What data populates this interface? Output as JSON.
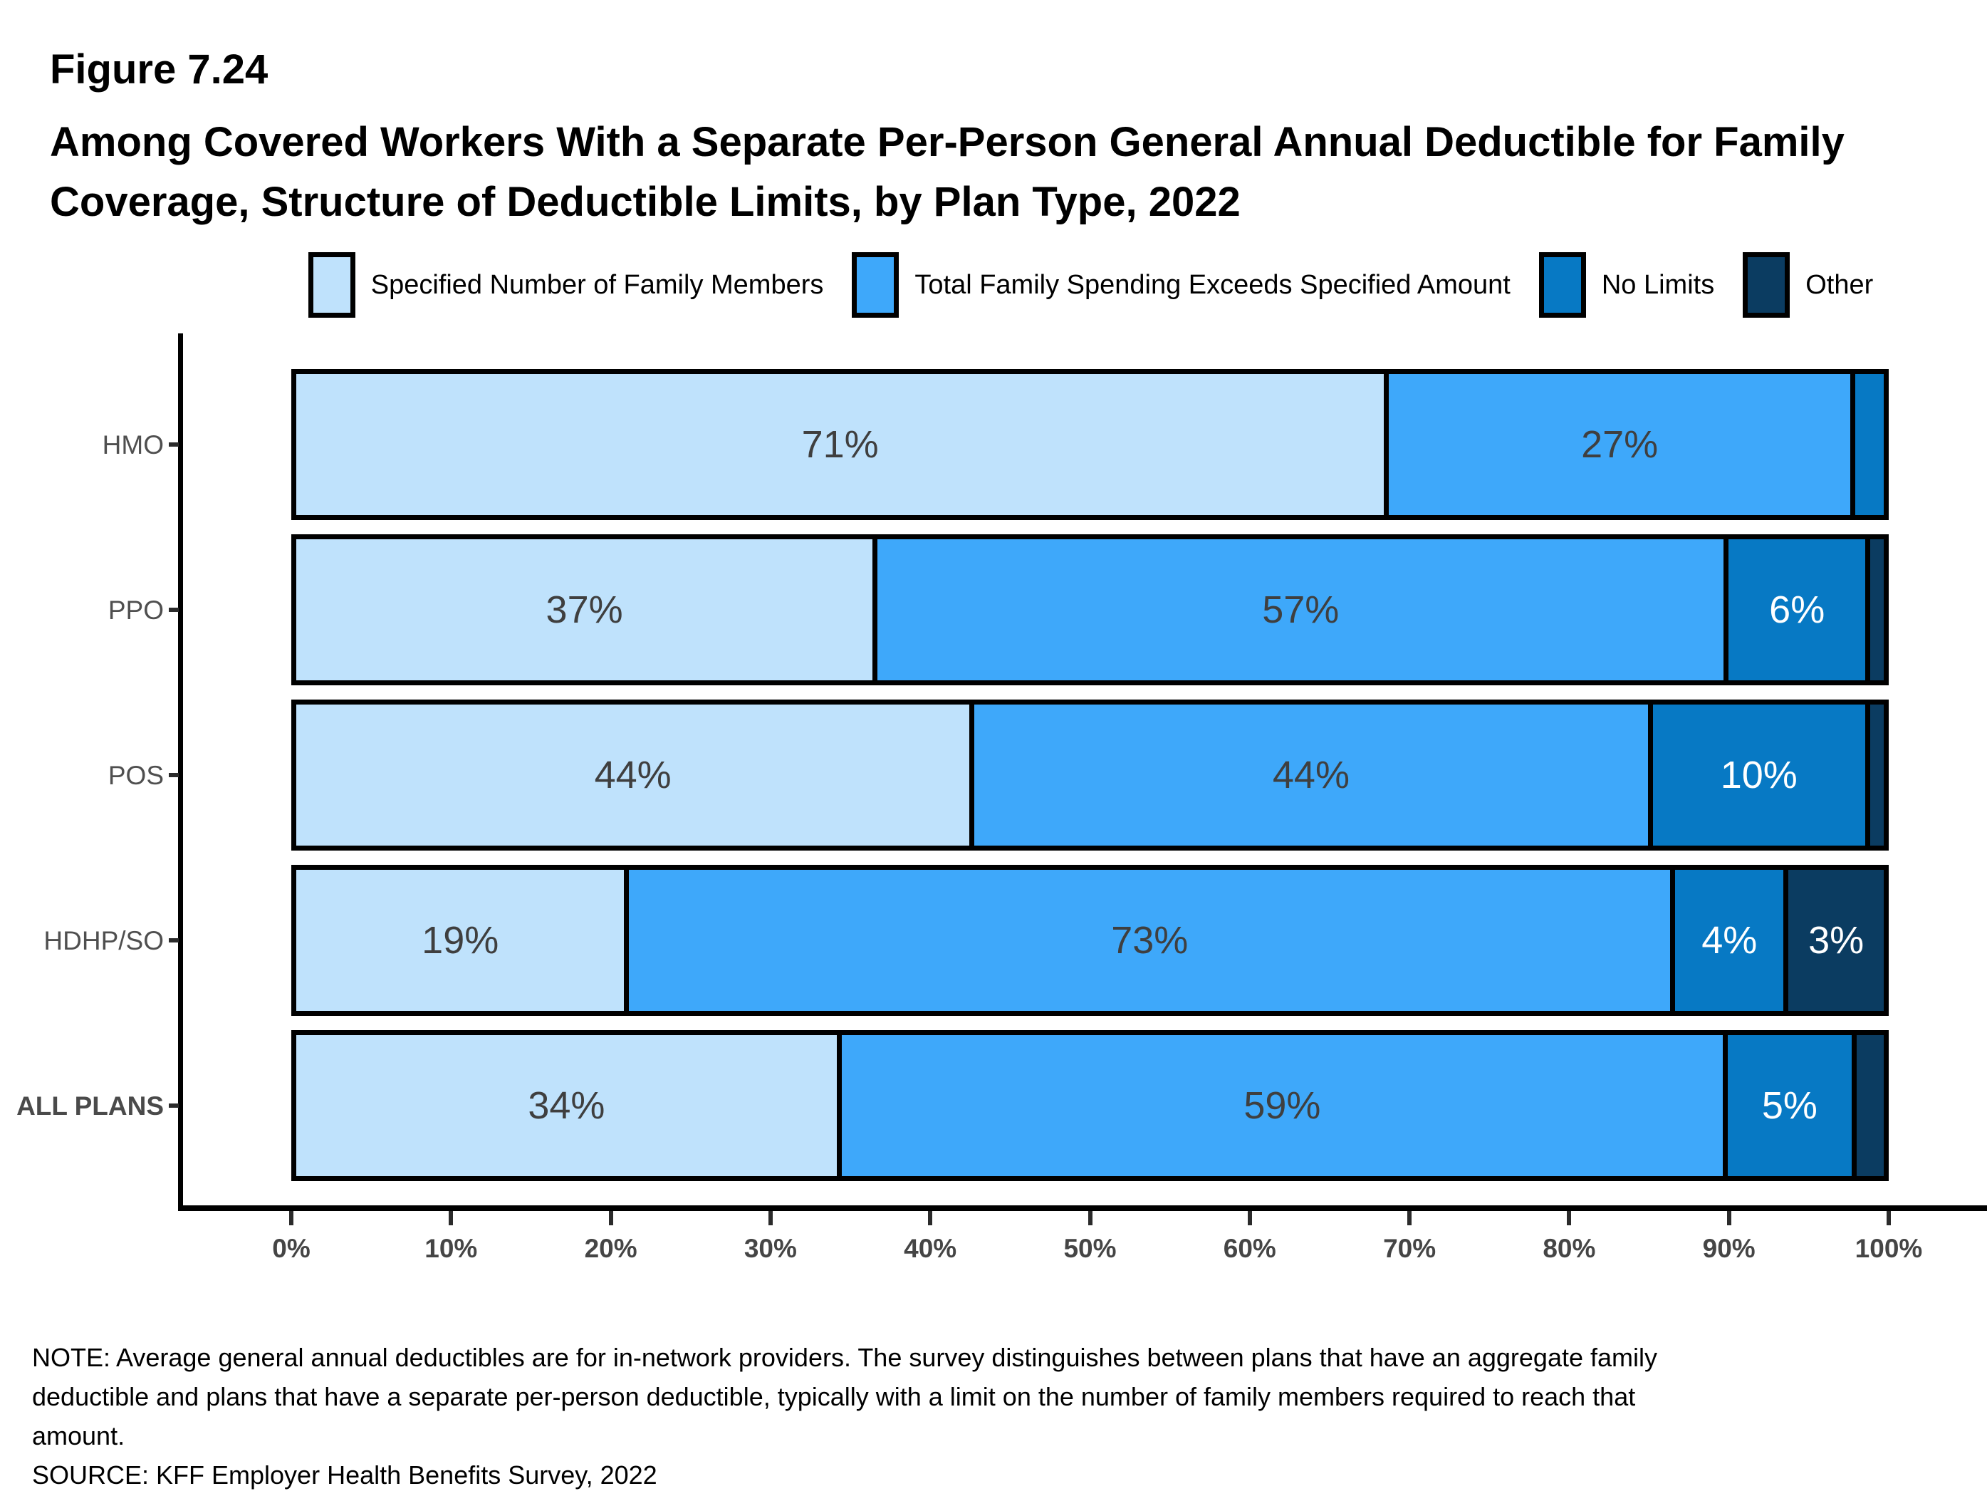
{
  "figure_label": "Figure 7.24",
  "title_line1": "Among Covered Workers With a Separate Per-Person General Annual Deductible for Family",
  "title_line2": "Coverage, Structure of Deductible Limits, by Plan Type, 2022",
  "note_lines": [
    "NOTE: Average general annual deductibles are for in-network providers. The survey distinguishes between plans that have an aggregate family",
    "deductible and plans that have a separate per-person deductible, typically with a limit on the number of family members required to reach that",
    "amount."
  ],
  "source": "SOURCE: KFF Employer Health Benefits Survey, 2022",
  "colors": {
    "specified_number": "#BFE2FC",
    "total_spending": "#3EA8FA",
    "no_limits": "#0779C4",
    "other": "#0B3C61",
    "dark_label": "#3F3F3F",
    "white_label": "#FFFFFF",
    "axis_text": "#454545"
  },
  "chart_data": {
    "type": "bar",
    "orientation": "horizontal",
    "stacked": true,
    "title": "Among Covered Workers With a Separate Per-Person General Annual Deductible for Family Coverage, Structure of Deductible Limits, by Plan Type, 2022",
    "categories": [
      "HMO",
      "PPO",
      "POS",
      "HDHP/SO",
      "ALL PLANS"
    ],
    "series": [
      {
        "name": "Specified Number of Family Members",
        "color": "#BFE2FC",
        "label_color": "#3F3F3F",
        "values": [
          71,
          37,
          44,
          19,
          34
        ]
      },
      {
        "name": "Total Family Spending Exceeds Specified Amount",
        "color": "#3EA8FA",
        "label_color": "#3F3F3F",
        "values": [
          27,
          57,
          44,
          73,
          59
        ]
      },
      {
        "name": "No Limits",
        "color": "#0779C4",
        "label_color": "#FFFFFF",
        "values": [
          2,
          6,
          10,
          4,
          5
        ]
      },
      {
        "name": "Other",
        "color": "#0B3C61",
        "label_color": "#FFFFFF",
        "values": [
          0,
          1,
          1,
          3,
          2
        ]
      }
    ],
    "segment_labels": [
      [
        "71%",
        "27%",
        "",
        ""
      ],
      [
        "37%",
        "57%",
        "6%",
        ""
      ],
      [
        "44%",
        "44%",
        "10%",
        ""
      ],
      [
        "19%",
        "73%",
        "4%",
        "3%"
      ],
      [
        "34%",
        "59%",
        "5%",
        ""
      ]
    ],
    "x_ticks": [
      "0%",
      "10%",
      "20%",
      "30%",
      "40%",
      "50%",
      "60%",
      "70%",
      "80%",
      "90%",
      "100%"
    ],
    "xlim": [
      0,
      100
    ],
    "grid": false,
    "legend_position": "top"
  }
}
